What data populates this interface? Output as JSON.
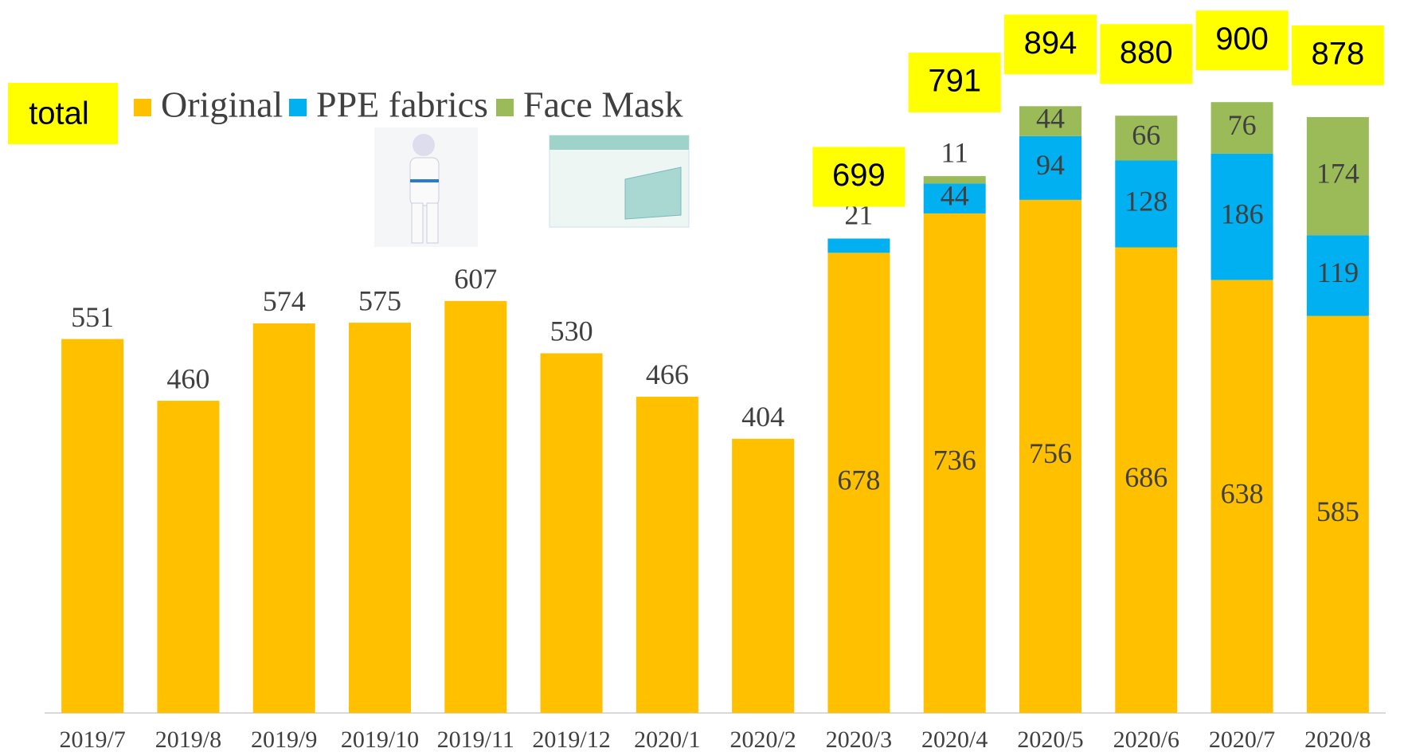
{
  "chart_data": {
    "type": "stacked_bar",
    "categories": [
      "2019/7",
      "2019/8",
      "2019/9",
      "2019/10",
      "2019/11",
      "2019/12",
      "2020/1",
      "2020/2",
      "2020/3",
      "2020/4",
      "2020/5",
      "2020/6",
      "2020/7",
      "2020/8"
    ],
    "series": [
      {
        "name": "Original",
        "color": "#FFC000",
        "values": [
          551,
          460,
          574,
          575,
          607,
          530,
          466,
          404,
          678,
          736,
          756,
          686,
          638,
          585
        ]
      },
      {
        "name": "PPE fabrics",
        "color": "#00B0F0",
        "values": [
          null,
          null,
          null,
          null,
          null,
          null,
          null,
          null,
          21,
          44,
          94,
          128,
          186,
          119
        ]
      },
      {
        "name": "Face Mask",
        "color": "#9BBB59",
        "values": [
          null,
          null,
          null,
          null,
          null,
          null,
          null,
          null,
          null,
          11,
          44,
          66,
          76,
          174
        ]
      }
    ],
    "total_label": "total",
    "totals": [
      null,
      null,
      null,
      null,
      null,
      null,
      null,
      null,
      699,
      791,
      894,
      880,
      900,
      878
    ],
    "total_color": "#FFFF00",
    "ylim": [
      0,
      1000
    ]
  }
}
